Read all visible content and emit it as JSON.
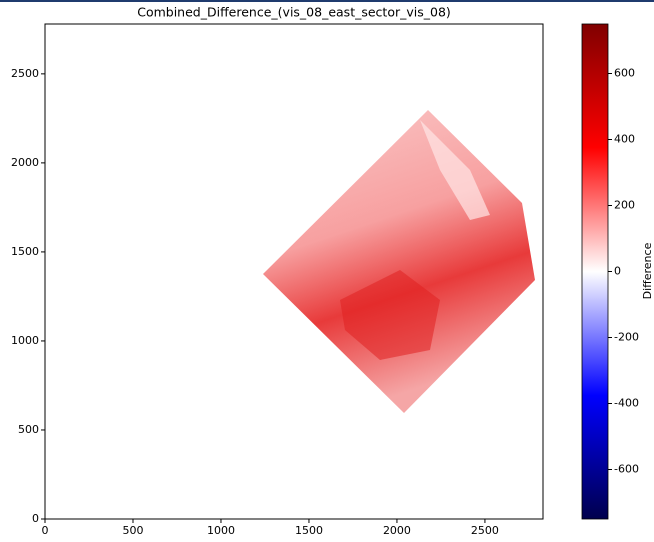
{
  "chart_data": {
    "type": "image",
    "title": "Combined_Difference_(vis_08_east_sector_vis_08)",
    "xlim": [
      0,
      2830
    ],
    "xticks": [
      0,
      500,
      1000,
      1500,
      2000,
      2500
    ],
    "ylim": [
      0,
      2780
    ],
    "yticks": [
      0,
      500,
      1000,
      1500,
      2000,
      2500
    ],
    "colorbar": {
      "label": "Difference",
      "colormap": "seismic",
      "clim": [
        -750,
        750
      ],
      "ticks": [
        -600,
        -400,
        -200,
        0,
        200,
        400,
        600
      ]
    }
  }
}
